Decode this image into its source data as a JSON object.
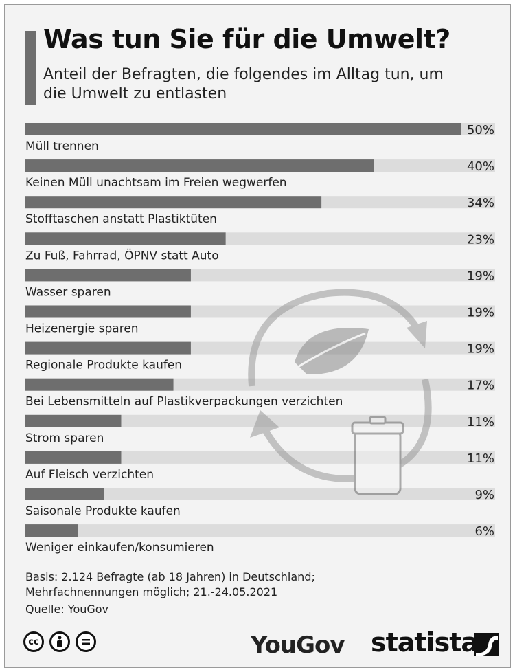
{
  "title": "Was tun Sie für die Umwelt?",
  "subtitle": "Anteil der Befragten, die folgendes im Alltag tun, um die Umwelt zu entlasten",
  "chart_data": {
    "type": "bar",
    "orientation": "horizontal",
    "value_unit": "%",
    "xlim": [
      0,
      50
    ],
    "categories": [
      "Müll trennen",
      "Keinen Müll unachtsam im Freien wegwerfen",
      "Stofftaschen anstatt Plastiktüten",
      "Zu Fuß, Fahrrad, ÖPNV statt Auto",
      "Wasser sparen",
      "Heizenergie sparen",
      "Regionale Produkte kaufen",
      "Bei Lebensmitteln auf Plastikverpackungen verzichten",
      "Strom sparen",
      "Auf Fleisch verzichten",
      "Saisonale Produkte kaufen",
      "Weniger einkaufen/konsumieren"
    ],
    "values": [
      50,
      40,
      34,
      23,
      19,
      19,
      19,
      17,
      11,
      11,
      9,
      6
    ],
    "colors": {
      "bar": "#6e6e6e",
      "track": "#dcdcdc"
    }
  },
  "footer": {
    "note_line1": "Basis: 2.124 Befragte (ab 18 Jahren) in Deutschland;",
    "note_line2": "Mehrfachnennungen möglich; 21.-24.05.2021",
    "source": "Quelle: YouGov"
  },
  "logos": {
    "yougov": "YouGov",
    "statista": "statista",
    "icons": [
      "cc-icon",
      "by-icon",
      "nd-icon"
    ]
  }
}
